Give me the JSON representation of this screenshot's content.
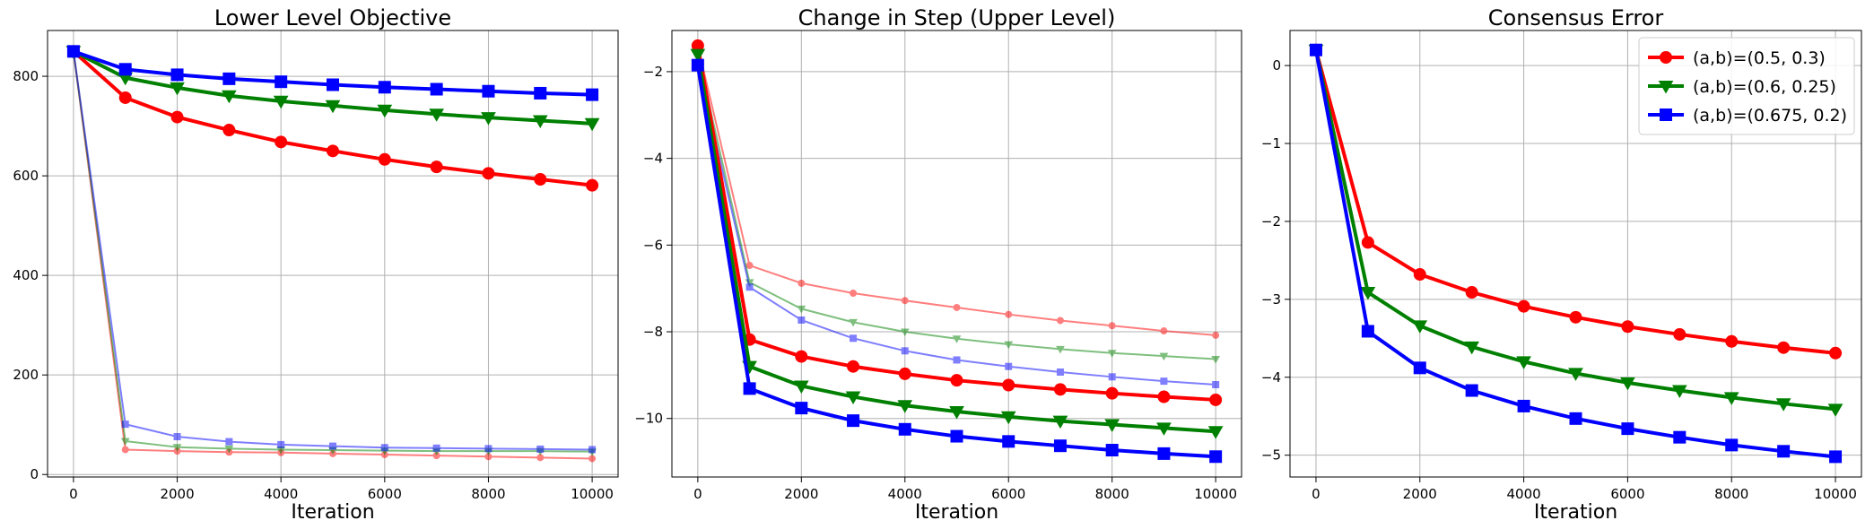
{
  "chart_data": [
    {
      "type": "line",
      "title": "Lower Level Objective",
      "xlabel": "Iteration",
      "ylabel": "",
      "xlim": [
        -500,
        10500
      ],
      "ylim": [
        -5,
        892
      ],
      "xticks": [
        0,
        2000,
        4000,
        6000,
        8000,
        10000
      ],
      "yticks": [
        0,
        200,
        400,
        600,
        800
      ],
      "x": [
        0,
        1000,
        2000,
        3000,
        4000,
        5000,
        6000,
        7000,
        8000,
        9000,
        10000
      ],
      "grid": true,
      "series": [
        {
          "name": "(a,b)=(0.5, 0.3)",
          "color": "#ff0000",
          "marker": "circle",
          "values": [
            850,
            757,
            718,
            692,
            668,
            650,
            633,
            618,
            605,
            593,
            581
          ]
        },
        {
          "name": "(a,b)=(0.6, 0.25)",
          "color": "#008000",
          "marker": "triangle-down",
          "values": [
            850,
            797,
            777,
            761,
            750,
            741,
            732,
            724,
            717,
            711,
            705
          ]
        },
        {
          "name": "(a,b)=(0.675, 0.2)",
          "color": "#0000ff",
          "marker": "square",
          "values": [
            850,
            814,
            803,
            795,
            789,
            783,
            778,
            774,
            770,
            766,
            763
          ]
        },
        {
          "color": "#ff0000",
          "marker": "circle",
          "faded": true,
          "values": [
            850,
            50,
            47,
            45,
            44,
            42,
            40,
            38,
            36,
            34,
            32
          ]
        },
        {
          "color": "#008000",
          "marker": "triangle-down",
          "faded": true,
          "values": [
            850,
            67,
            55,
            52,
            50,
            49,
            48,
            47,
            47,
            47,
            46
          ]
        },
        {
          "color": "#0000ff",
          "marker": "square",
          "faded": true,
          "values": [
            850,
            101,
            76,
            66,
            60,
            57,
            54,
            53,
            52,
            51,
            50
          ]
        }
      ]
    },
    {
      "type": "line",
      "title": "Change in Step (Upper Level)",
      "xlabel": "Iteration",
      "ylabel": "",
      "xlim": [
        -500,
        10500
      ],
      "ylim": [
        -11.35,
        -1.05
      ],
      "xticks": [
        0,
        2000,
        4000,
        6000,
        8000,
        10000
      ],
      "yticks": [
        -10,
        -8,
        -6,
        -4,
        -2
      ],
      "x": [
        0,
        1000,
        2000,
        3000,
        4000,
        5000,
        6000,
        7000,
        8000,
        9000,
        10000
      ],
      "grid": true,
      "series": [
        {
          "name": "(a,b)=(0.5, 0.3)",
          "color": "#ff0000",
          "marker": "circle",
          "values": [
            -1.4,
            -8.18,
            -8.57,
            -8.8,
            -8.97,
            -9.12,
            -9.23,
            -9.33,
            -9.42,
            -9.5,
            -9.57
          ]
        },
        {
          "name": "(a,b)=(0.6, 0.25)",
          "color": "#008000",
          "marker": "triangle-down",
          "values": [
            -1.6,
            -8.8,
            -9.25,
            -9.5,
            -9.7,
            -9.84,
            -9.96,
            -10.06,
            -10.14,
            -10.22,
            -10.3
          ]
        },
        {
          "name": "(a,b)=(0.675, 0.2)",
          "color": "#0000ff",
          "marker": "square",
          "values": [
            -1.85,
            -9.31,
            -9.76,
            -10.05,
            -10.25,
            -10.41,
            -10.53,
            -10.63,
            -10.73,
            -10.81,
            -10.88
          ]
        },
        {
          "color": "#ff0000",
          "marker": "circle",
          "faded": true,
          "values": [
            -1.4,
            -6.47,
            -6.88,
            -7.11,
            -7.28,
            -7.44,
            -7.6,
            -7.74,
            -7.86,
            -7.98,
            -8.08
          ]
        },
        {
          "color": "#008000",
          "marker": "triangle-down",
          "faded": true,
          "values": [
            -1.6,
            -6.86,
            -7.47,
            -7.78,
            -8.0,
            -8.16,
            -8.29,
            -8.4,
            -8.49,
            -8.56,
            -8.63
          ]
        },
        {
          "color": "#0000ff",
          "marker": "square",
          "faded": true,
          "values": [
            -1.85,
            -6.97,
            -7.73,
            -8.15,
            -8.44,
            -8.65,
            -8.8,
            -8.93,
            -9.04,
            -9.14,
            -9.22
          ]
        }
      ]
    },
    {
      "type": "line",
      "title": "Consensus Error",
      "xlabel": "Iteration",
      "ylabel": "",
      "xlim": [
        -500,
        10500
      ],
      "ylim": [
        -5.28,
        0.45
      ],
      "xticks": [
        0,
        2000,
        4000,
        6000,
        8000,
        10000
      ],
      "yticks": [
        -5,
        -4,
        -3,
        -2,
        -1,
        0
      ],
      "x": [
        0,
        1000,
        2000,
        3000,
        4000,
        5000,
        6000,
        7000,
        8000,
        9000,
        10000
      ],
      "grid": true,
      "legend": "top-right",
      "series": [
        {
          "name": "(a,b)=(0.5, 0.3)",
          "color": "#ff0000",
          "marker": "circle",
          "values": [
            0.2,
            -2.27,
            -2.68,
            -2.91,
            -3.09,
            -3.23,
            -3.35,
            -3.45,
            -3.54,
            -3.62,
            -3.69
          ]
        },
        {
          "name": "(a,b)=(0.6, 0.25)",
          "color": "#008000",
          "marker": "triangle-down",
          "values": [
            0.2,
            -2.91,
            -3.34,
            -3.61,
            -3.8,
            -3.95,
            -4.07,
            -4.17,
            -4.26,
            -4.34,
            -4.41
          ]
        },
        {
          "name": "(a,b)=(0.675, 0.2)",
          "color": "#0000ff",
          "marker": "square",
          "values": [
            0.2,
            -3.41,
            -3.88,
            -4.17,
            -4.37,
            -4.53,
            -4.66,
            -4.77,
            -4.87,
            -4.95,
            -5.02
          ]
        }
      ]
    }
  ]
}
